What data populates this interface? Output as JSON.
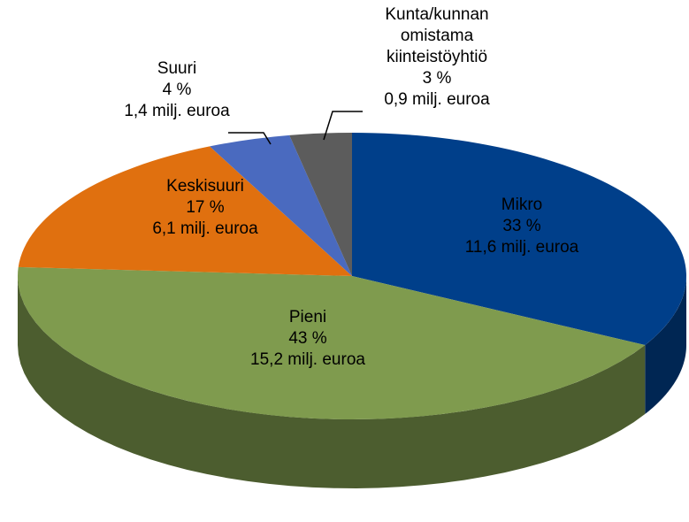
{
  "chart_data": {
    "type": "pie",
    "categories": [
      "Mikro",
      "Pieni",
      "Keskisuuri",
      "Suuri",
      "Kunta/kunnan omistama kiinteistöyhtiö"
    ],
    "values": [
      33,
      43,
      17,
      4,
      3
    ],
    "value_labels": [
      "33 %",
      "43 %",
      "17 %",
      "4 %",
      "3 %"
    ],
    "amount_labels": [
      "11,6 milj. euroa",
      "15,2 milj. euroa",
      "6,1 milj. euroa",
      "1,4 milj. euroa",
      "0,9 milj. euroa"
    ],
    "colors": [
      "#003f8a",
      "#7f9b4e",
      "#e0700f",
      "#4a6abf",
      "#5c5c5c"
    ]
  }
}
